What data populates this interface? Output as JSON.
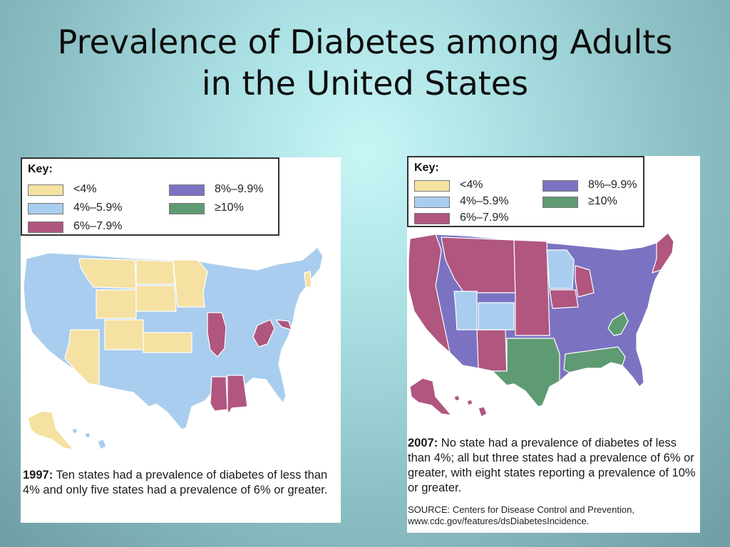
{
  "slide": {
    "title_line1": "Prevalence of Diabetes among Adults",
    "title_line2": "in the United States"
  },
  "legend": {
    "title": "Key:",
    "items": [
      {
        "label": "<4%",
        "color": "#f5e1a1"
      },
      {
        "label": "4%–5.9%",
        "color": "#a9cdee"
      },
      {
        "label": "6%–7.9%",
        "color": "#b0567f"
      },
      {
        "label": "8%–9.9%",
        "color": "#7b73c2"
      },
      {
        "label": "≥10%",
        "color": "#5e9b72"
      }
    ]
  },
  "map_1997": {
    "year_label": "1997:",
    "caption": "Ten states had a prevalence of diabetes of less than 4% and only five states had a prevalence of 6% or greater."
  },
  "map_2007": {
    "year_label": "2007:",
    "caption": "No state had a prevalence of diabetes of less than 4%; all but three states had a prevalence of 6% or greater, with eight states reporting a prevalence of 10% or greater.",
    "source": "SOURCE: Centers for Disease Control and Prevention, www.cdc.gov/features/dsDiabetesIncidence."
  }
}
